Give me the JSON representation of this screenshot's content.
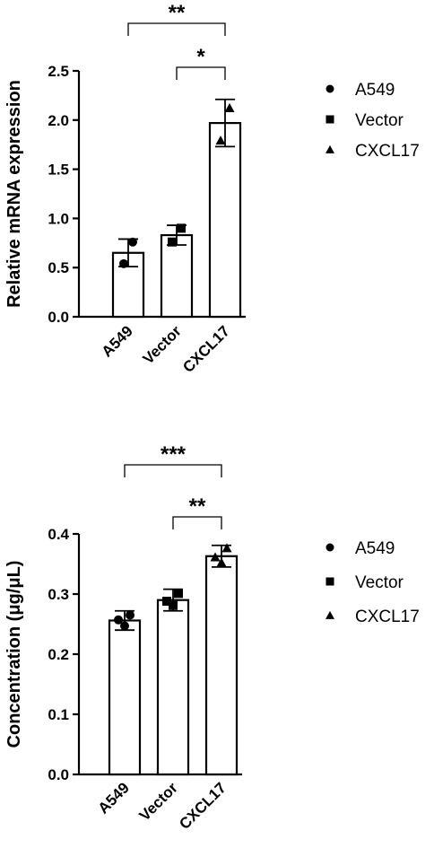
{
  "chart_data": [
    {
      "type": "bar",
      "ylabel": "Relative mRNA expression",
      "categories": [
        "A549",
        "Vector",
        "CXCL17"
      ],
      "ylim": [
        0,
        2.5
      ],
      "yticks": [
        "0.0",
        "0.5",
        "1.0",
        "1.5",
        "2.0",
        "2.5"
      ],
      "means": [
        0.65,
        0.83,
        1.97
      ],
      "errors": [
        0.14,
        0.1,
        0.24
      ],
      "points": [
        [
          0.76,
          0.54
        ],
        [
          0.9,
          0.76
        ],
        [
          2.12,
          1.79
        ]
      ],
      "markers": [
        "circle",
        "square",
        "triangle"
      ],
      "legend": {
        "position": "right",
        "entries": [
          {
            "name": "A549",
            "marker": "circle"
          },
          {
            "name": "Vector",
            "marker": "square"
          },
          {
            "name": "CXCL17",
            "marker": "triangle"
          }
        ]
      },
      "significance": [
        {
          "from": "A549",
          "to": "CXCL17",
          "label": "**"
        },
        {
          "from": "Vector",
          "to": "CXCL17",
          "label": "*"
        }
      ]
    },
    {
      "type": "bar",
      "ylabel": "Concentration (μg/μL)",
      "categories": [
        "A549",
        "Vector",
        "CXCL17"
      ],
      "ylim": [
        0,
        0.4
      ],
      "yticks": [
        "0.0",
        "0.1",
        "0.2",
        "0.3",
        "0.4"
      ],
      "means": [
        0.256,
        0.29,
        0.363
      ],
      "errors": [
        0.016,
        0.018,
        0.018
      ],
      "points": [
        [
          0.265,
          0.257,
          0.247
        ],
        [
          0.301,
          0.288,
          0.281
        ],
        [
          0.376,
          0.361,
          0.352
        ]
      ],
      "markers": [
        "circle",
        "square",
        "triangle"
      ],
      "legend": {
        "position": "right",
        "entries": [
          {
            "name": "A549",
            "marker": "circle"
          },
          {
            "name": "Vector",
            "marker": "square"
          },
          {
            "name": "CXCL17",
            "marker": "triangle"
          }
        ]
      },
      "significance": [
        {
          "from": "A549",
          "to": "CXCL17",
          "label": "***"
        },
        {
          "from": "Vector",
          "to": "CXCL17",
          "label": "**"
        }
      ]
    }
  ]
}
